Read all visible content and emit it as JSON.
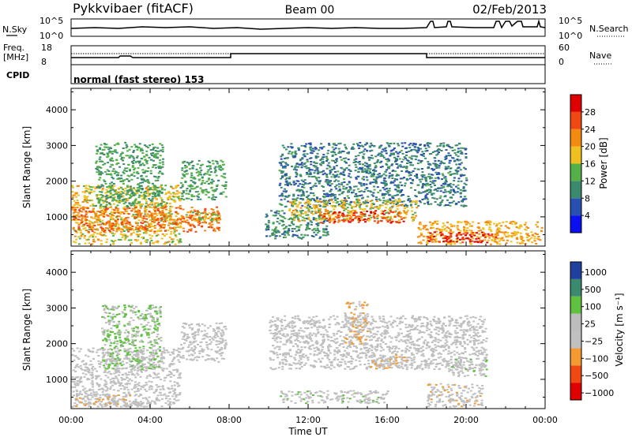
{
  "header": {
    "station": "Pykkvibaer (fitACF)",
    "beam": "Beam 00",
    "date": "02/Feb/2013"
  },
  "noise_panel": {
    "left_label": "N.Sky",
    "right_label": "N.Search",
    "left_ticks": [
      "10^5",
      "10^0"
    ],
    "right_ticks": [
      "10^5",
      "10^0"
    ]
  },
  "freq_panel": {
    "left_label_line1": "Freq.",
    "left_label_line2": "[MHz]",
    "right_label": "Nave",
    "left_ticks": [
      "18",
      "8"
    ],
    "right_ticks": [
      "60",
      "0"
    ]
  },
  "cpid": {
    "label": "CPID",
    "value": "normal (fast stereo) 153"
  },
  "colors": {
    "power_scale": [
      "#0a10f0",
      "#2850b0",
      "#3c8a6e",
      "#56b04a",
      "#f0c020",
      "#f58a10",
      "#f04810",
      "#e00000"
    ],
    "velocity_scale": [
      "#e00000",
      "#f04810",
      "#f59a30",
      "#c0c0c0",
      "#bdbdbd",
      "#60c040",
      "#3c8a6e",
      "#2040a0"
    ]
  },
  "chart_data": [
    {
      "type": "heatmap",
      "panel": "power",
      "ylabel": "Slant Range [km]",
      "xlabel": "Time UT",
      "x_ticks": [
        "00:00",
        "04:00",
        "08:00",
        "12:00",
        "16:00",
        "20:00",
        "00:00"
      ],
      "x_range_hours": [
        0,
        24
      ],
      "y_ticks": [
        1000,
        2000,
        3000,
        4000
      ],
      "y_range_km": [
        180,
        4600
      ],
      "colorbar": {
        "label": "Power [dB]",
        "ticks": [
          "4",
          "8",
          "12",
          "16",
          "20",
          "24",
          "28"
        ],
        "range": [
          0,
          32
        ]
      },
      "regions": [
        {
          "t0": 0.0,
          "t1": 5.5,
          "r0": 250,
          "r1": 1900,
          "value": 18
        },
        {
          "t0": 0.0,
          "t1": 7.5,
          "r0": 600,
          "r1": 1300,
          "value": 24
        },
        {
          "t0": 1.2,
          "t1": 4.6,
          "r0": 1300,
          "r1": 3100,
          "value": 12
        },
        {
          "t0": 5.5,
          "t1": 7.8,
          "r0": 1500,
          "r1": 2600,
          "value": 12
        },
        {
          "t0": 5.6,
          "t1": 7.5,
          "r0": 900,
          "r1": 1150,
          "value": 16
        },
        {
          "t0": 9.8,
          "t1": 13.0,
          "r0": 400,
          "r1": 1200,
          "value": 10
        },
        {
          "t0": 10.5,
          "t1": 20.0,
          "r0": 1300,
          "r1": 3100,
          "value": 9
        },
        {
          "t0": 11.0,
          "t1": 17.5,
          "r0": 900,
          "r1": 1500,
          "value": 18
        },
        {
          "t0": 12.5,
          "t1": 16.8,
          "r0": 850,
          "r1": 1200,
          "value": 26
        },
        {
          "t0": 17.5,
          "t1": 23.8,
          "r0": 250,
          "r1": 900,
          "value": 20
        },
        {
          "t0": 18.0,
          "t1": 21.5,
          "r0": 300,
          "r1": 600,
          "value": 28
        }
      ]
    },
    {
      "type": "heatmap",
      "panel": "velocity",
      "ylabel": "Slant Range [km]",
      "xlabel": "Time UT",
      "x_ticks": [
        "00:00",
        "04:00",
        "08:00",
        "12:00",
        "16:00",
        "20:00",
        "00:00"
      ],
      "x_range_hours": [
        0,
        24
      ],
      "y_ticks": [
        1000,
        2000,
        3000,
        4000
      ],
      "y_range_km": [
        180,
        4600
      ],
      "colorbar": {
        "label": "Velocity [m s⁻¹]",
        "ticks": [
          "1000",
          "500",
          "100",
          "25",
          "−25",
          "−100",
          "−500",
          "−1000"
        ],
        "range": [
          -1200,
          1200
        ]
      },
      "regions": [
        {
          "t0": 0.0,
          "t1": 5.5,
          "r0": 250,
          "r1": 1900,
          "value": 0
        },
        {
          "t0": 0.2,
          "t1": 3.0,
          "r0": 250,
          "r1": 600,
          "value": -200
        },
        {
          "t0": 1.5,
          "t1": 4.5,
          "r0": 1300,
          "r1": 3100,
          "value": 300
        },
        {
          "t0": 5.5,
          "t1": 7.8,
          "r0": 1500,
          "r1": 2600,
          "value": 0
        },
        {
          "t0": 10.0,
          "t1": 21.0,
          "r0": 1300,
          "r1": 2800,
          "value": 0
        },
        {
          "t0": 10.5,
          "t1": 16.0,
          "r0": 350,
          "r1": 700,
          "value": 80
        },
        {
          "t0": 13.8,
          "t1": 15.0,
          "r0": 2000,
          "r1": 3200,
          "value": -250
        },
        {
          "t0": 15.0,
          "t1": 17.0,
          "r0": 1300,
          "r1": 1700,
          "value": -200
        },
        {
          "t0": 18.0,
          "t1": 20.8,
          "r0": 250,
          "r1": 900,
          "value": -150
        },
        {
          "t0": 19.0,
          "t1": 21.0,
          "r0": 1100,
          "r1": 1600,
          "value": 80
        }
      ]
    }
  ]
}
